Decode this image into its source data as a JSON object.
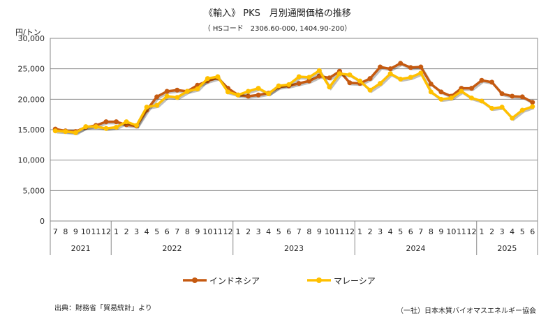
{
  "chart_data": {
    "type": "line",
    "title": "《輸入》 PKS　月別通関価格の推移",
    "subtitle": "（ HSコード　2306.60-000, 1404.90-200）",
    "ylabel": "円/トン",
    "ylim": [
      0,
      30000
    ],
    "yticks": [
      "0",
      "5,000",
      "10,000",
      "15,000",
      "20,000",
      "25,000",
      "30,000"
    ],
    "ytick_values": [
      0,
      5000,
      10000,
      15000,
      20000,
      25000,
      30000
    ],
    "grid": true,
    "legend_position": "bottom",
    "months": [
      "7",
      "8",
      "9",
      "10",
      "11",
      "12",
      "1",
      "2",
      "3",
      "4",
      "5",
      "6",
      "7",
      "8",
      "9",
      "10",
      "11",
      "12",
      "1",
      "2",
      "3",
      "4",
      "5",
      "6",
      "7",
      "8",
      "9",
      "10",
      "11",
      "12",
      "1",
      "2",
      "3",
      "4",
      "5",
      "6",
      "7",
      "8",
      "9",
      "10",
      "11",
      "12",
      "1",
      "2",
      "3",
      "4",
      "5",
      "6"
    ],
    "years": [
      {
        "label": "2021",
        "count": 6
      },
      {
        "label": "2022",
        "count": 12
      },
      {
        "label": "2023",
        "count": 12
      },
      {
        "label": "2024",
        "count": 12
      },
      {
        "label": "2025",
        "count": 6
      }
    ],
    "series": [
      {
        "name": "インドネシア",
        "color": "#C55A11",
        "values": [
          15100,
          14800,
          14700,
          15400,
          15700,
          16300,
          16300,
          15800,
          15600,
          18200,
          20400,
          21300,
          21500,
          21300,
          22300,
          23000,
          23500,
          21800,
          20700,
          20500,
          20700,
          21000,
          22000,
          22200,
          22600,
          23000,
          23800,
          23500,
          24600,
          22700,
          22600,
          23400,
          25300,
          25000,
          25900,
          25200,
          25300,
          22500,
          21200,
          20500,
          21800,
          21800,
          23100,
          22800,
          20900,
          20500,
          20400,
          19500
        ]
      },
      {
        "name": "マレーシア",
        "color": "#FFC000",
        "values": [
          14800,
          14700,
          14500,
          15500,
          15500,
          15200,
          15400,
          16300,
          15700,
          18700,
          19000,
          20500,
          20300,
          21300,
          21700,
          23400,
          23700,
          21200,
          20700,
          21300,
          21800,
          20900,
          22200,
          22400,
          23700,
          23600,
          24700,
          22000,
          24200,
          24000,
          23000,
          21500,
          22600,
          24200,
          23300,
          23600,
          24300,
          21200,
          20000,
          20200,
          21300,
          20200,
          19700,
          18500,
          18700,
          16900,
          18200,
          18800
        ]
      }
    ]
  },
  "notes": {
    "source": "出典：財務省「貿易統計」より",
    "credit": "（一社）日本木質バイオマスエネルギー協会"
  }
}
